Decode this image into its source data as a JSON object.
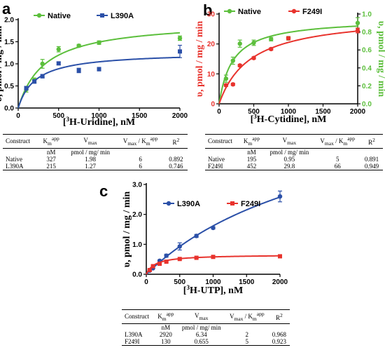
{
  "chart_data": [
    {
      "panel": "a",
      "type": "scatter",
      "xlabel_pre": "[",
      "xlabel_sup": "3",
      "xlabel_post": "H-Uridine], nM",
      "ylabel": "υ, pmol / mg / min",
      "xlim": [
        0,
        2000
      ],
      "ylim": [
        0,
        2.0
      ],
      "xticks": [
        0,
        500,
        1000,
        1500,
        2000
      ],
      "yticks": [
        0.0,
        0.5,
        1.0,
        1.5,
        2.0
      ],
      "legend_position": "top",
      "series": [
        {
          "name": "Native",
          "color": "#5cbf3c",
          "marker": "circle",
          "x": [
            100,
            200,
            300,
            500,
            750,
            1000,
            2000
          ],
          "y": [
            0.42,
            0.63,
            1.0,
            1.33,
            1.41,
            1.48,
            1.58
          ],
          "err": [
            0.06,
            0.05,
            0.1,
            0.06,
            0.03,
            0.04,
            0.05
          ],
          "fit": {
            "vmax": 1.98,
            "km": 327
          }
        },
        {
          "name": "L390A",
          "color": "#2b50a8",
          "marker": "square",
          "x": [
            100,
            200,
            300,
            500,
            750,
            1000,
            2000
          ],
          "y": [
            0.45,
            0.6,
            0.72,
            1.01,
            0.85,
            0.88,
            1.28
          ],
          "err": [
            0.04,
            0.04,
            0.04,
            0.03,
            0.05,
            0.04,
            0.14
          ],
          "fit": {
            "vmax": 1.27,
            "km": 215
          }
        }
      ]
    },
    {
      "panel": "b",
      "type": "scatter",
      "xlabel_pre": "[",
      "xlabel_sup": "3",
      "xlabel_post": "H-Cytidine], nM",
      "ylabel": "υ, pmol / mg / min",
      "ylabel2": "υ, pmol / mg / min",
      "xlim": [
        0,
        2000
      ],
      "ylim": [
        0,
        30
      ],
      "ylim2": [
        0,
        1.0
      ],
      "xticks": [
        0,
        500,
        1000,
        1500,
        2000
      ],
      "yticks": [
        0,
        10,
        20,
        30
      ],
      "yticks2": [
        0.0,
        0.2,
        0.4,
        0.6,
        0.8,
        1.0
      ],
      "legend_position": "top",
      "series": [
        {
          "name": "Native",
          "color": "#5cbf3c",
          "marker": "circle",
          "axis": "right",
          "x": [
            100,
            200,
            300,
            500,
            750,
            1000,
            2000
          ],
          "y": [
            0.28,
            0.48,
            0.67,
            0.68,
            0.72,
            0.73,
            0.9
          ],
          "err": [
            0.04,
            0.04,
            0.04,
            0.03,
            0.02,
            0.02,
            0.06
          ],
          "fit": {
            "vmax": 0.95,
            "km": 195
          }
        },
        {
          "name": "F249I",
          "color": "#e8332d",
          "marker": "circle",
          "axis": "left",
          "x": [
            100,
            200,
            300,
            500,
            750,
            1000,
            2000
          ],
          "y": [
            6.2,
            6.5,
            12.8,
            15.3,
            18.3,
            21.9,
            24.5
          ],
          "err": [
            0.4,
            0.4,
            0.4,
            0.4,
            0.4,
            0.5,
            0.8
          ],
          "fit": {
            "vmax": 29.8,
            "km": 452
          }
        }
      ]
    },
    {
      "panel": "c",
      "type": "scatter",
      "xlabel_pre": "[",
      "xlabel_sup": "3",
      "xlabel_post": "H-UTP], nM",
      "ylabel": "υ, pmol / mg / min",
      "xlim": [
        0,
        2000
      ],
      "ylim": [
        0,
        3.0
      ],
      "xticks": [
        0,
        500,
        1000,
        1500,
        2000
      ],
      "yticks": [
        0.0,
        1.0,
        2.0,
        3.0
      ],
      "legend_position": "top",
      "series": [
        {
          "name": "L390A",
          "color": "#2b50a8",
          "marker": "circle",
          "x": [
            50,
            100,
            200,
            300,
            500,
            750,
            1000,
            2000
          ],
          "y": [
            0.12,
            0.2,
            0.45,
            0.62,
            0.93,
            1.28,
            1.55,
            2.6
          ],
          "err": [
            0.02,
            0.02,
            0.03,
            0.05,
            0.12,
            0.05,
            0.04,
            0.18
          ],
          "fit": {
            "vmax": 6.34,
            "km": 2920
          }
        },
        {
          "name": "F249I",
          "color": "#e8332d",
          "marker": "square",
          "x": [
            50,
            100,
            200,
            300,
            500,
            750,
            1000,
            2000
          ],
          "y": [
            0.14,
            0.27,
            0.35,
            0.42,
            0.51,
            0.55,
            0.58,
            0.6
          ],
          "err": [
            0.02,
            0.02,
            0.02,
            0.02,
            0.02,
            0.02,
            0.02,
            0.03
          ],
          "fit": {
            "vmax": 0.655,
            "km": 130
          }
        }
      ]
    }
  ],
  "tables": [
    {
      "panel": "a",
      "header": {
        "construct": "Construct",
        "km": "K",
        "km_sub": "m",
        "km_sup": "app",
        "vmax": "V",
        "vmax_sub": "max",
        "ratio_a": "V",
        "ratio_a_sub": "max",
        "ratio_b": " / K",
        "ratio_b_sub": "m",
        "ratio_b_sup": "app",
        "r2": "R",
        "r2_sup": "2"
      },
      "units": {
        "km": "nM",
        "vmax": "pmol / mg/ min"
      },
      "rows": [
        {
          "construct": "Native",
          "km": "327",
          "vmax": "1.98",
          "ratio": "6",
          "r2": "0.892"
        },
        {
          "construct": "L390A",
          "km": "215",
          "vmax": "1.27",
          "ratio": "6",
          "r2": "0.746"
        }
      ]
    },
    {
      "panel": "b",
      "header": {
        "construct": "Construct",
        "km": "K",
        "km_sub": "m",
        "km_sup": "app",
        "vmax": "V",
        "vmax_sub": "max",
        "ratio_a": "V",
        "ratio_a_sub": "max",
        "ratio_b": " / K",
        "ratio_b_sub": "m",
        "ratio_b_sup": "app",
        "r2": "R",
        "r2_sup": "2"
      },
      "units": {
        "km": "nM",
        "vmax": "pmol / mg/ min"
      },
      "rows": [
        {
          "construct": "Native",
          "km": "195",
          "vmax": "0.95",
          "ratio": "5",
          "r2": "0.891"
        },
        {
          "construct": "F249I",
          "km": "452",
          "vmax": "29.8",
          "ratio": "66",
          "r2": "0.949"
        }
      ]
    },
    {
      "panel": "c",
      "header": {
        "construct": "Construct",
        "km": "K",
        "km_sub": "m",
        "km_sup": "app",
        "vmax": "V",
        "vmax_sub": "max",
        "ratio_a": "V",
        "ratio_a_sub": "max",
        "ratio_b": " / K",
        "ratio_b_sub": "m",
        "ratio_b_sup": "app",
        "r2": "R",
        "r2_sup": "2"
      },
      "units": {
        "km": "nM",
        "vmax": "pmol / mg/ min"
      },
      "rows": [
        {
          "construct": "L390A",
          "km": "2920",
          "vmax": "6.34",
          "ratio": "2",
          "r2": "0.968"
        },
        {
          "construct": "F249I",
          "km": "130",
          "vmax": "0.655",
          "ratio": "5",
          "r2": "0.923"
        }
      ]
    }
  ]
}
